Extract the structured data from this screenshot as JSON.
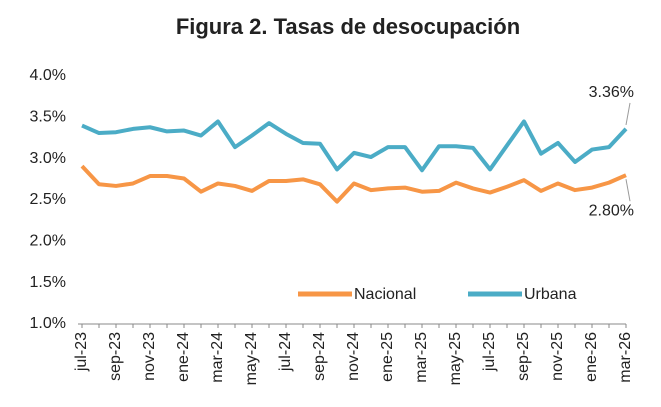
{
  "chart_data": {
    "type": "line",
    "title": "Figura 2. Tasas de desocupación",
    "categories": [
      "jul-23",
      null,
      "sep-23",
      null,
      "nov-23",
      null,
      "ene-24",
      null,
      "mar-24",
      null,
      "may-24",
      null,
      "jul-24",
      null,
      "sep-24",
      null,
      "nov-24",
      null,
      "ene-25",
      null,
      "mar-25",
      null,
      "may-25",
      null,
      "jul-25",
      null,
      "sep-25",
      null,
      "nov-25",
      null,
      "ene-26",
      null,
      "mar-26"
    ],
    "series": [
      {
        "name": "Nacional",
        "color": "#f79646",
        "values": [
          2.91,
          2.69,
          2.67,
          2.7,
          2.79,
          2.79,
          2.76,
          2.6,
          2.7,
          2.67,
          2.61,
          2.73,
          2.73,
          2.75,
          2.69,
          2.48,
          2.7,
          2.62,
          2.64,
          2.65,
          2.6,
          2.61,
          2.71,
          2.64,
          2.59,
          2.66,
          2.74,
          2.61,
          2.7,
          2.62,
          2.65,
          2.71,
          2.8
        ],
        "value_labels": [
          null,
          null,
          null,
          null,
          null,
          null,
          null,
          null,
          null,
          null,
          null,
          null,
          null,
          null,
          null,
          null,
          null,
          null,
          null,
          null,
          null,
          null,
          null,
          null,
          null,
          null,
          null,
          null,
          null,
          null,
          null,
          null,
          "2.80%"
        ]
      },
      {
        "name": "Urbana",
        "color": "#4bacc6",
        "values": [
          3.4,
          3.31,
          3.32,
          3.36,
          3.38,
          3.33,
          3.34,
          3.28,
          3.45,
          3.14,
          3.28,
          3.43,
          3.3,
          3.19,
          3.18,
          2.87,
          3.07,
          3.02,
          3.14,
          3.14,
          2.86,
          3.15,
          3.15,
          3.13,
          2.87,
          3.16,
          3.45,
          3.06,
          3.19,
          2.96,
          3.11,
          3.14,
          3.36
        ],
        "value_labels": [
          null,
          null,
          null,
          null,
          null,
          null,
          null,
          null,
          null,
          null,
          null,
          null,
          null,
          null,
          null,
          null,
          null,
          null,
          null,
          null,
          null,
          null,
          null,
          null,
          null,
          null,
          null,
          null,
          null,
          null,
          null,
          null,
          "3.36%"
        ]
      }
    ],
    "ylim": [
      1.0,
      4.0
    ],
    "yticks": [
      {
        "value": 1.0,
        "label": "1.0%"
      },
      {
        "value": 1.5,
        "label": "1.5%"
      },
      {
        "value": 2.0,
        "label": "2.0%"
      },
      {
        "value": 2.5,
        "label": "2.5%"
      },
      {
        "value": 3.0,
        "label": "3.0%"
      },
      {
        "value": 3.5,
        "label": "3.5%"
      },
      {
        "value": 4.0,
        "label": "4.0%"
      }
    ],
    "grid": false,
    "legend": "lower right"
  }
}
